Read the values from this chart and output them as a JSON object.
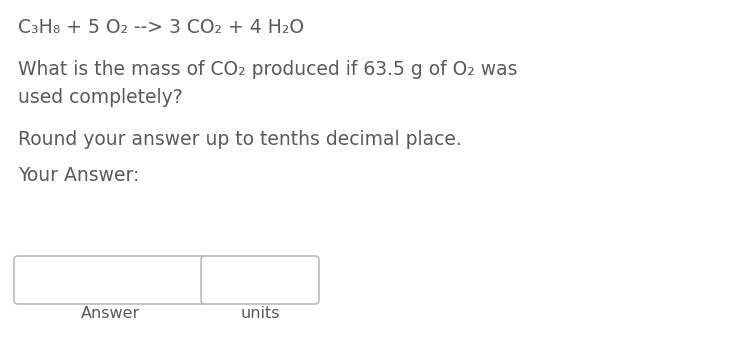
{
  "background_color": "#ffffff",
  "line1": "C₃H₈ + 5 O₂ --> 3 CO₂ + 4 H₂O",
  "line2": "What is the mass of CO₂ produced if 63.5 g of O₂ was",
  "line3": "used completely?",
  "line4": "Round your answer up to tenths decimal place.",
  "line5": "Your Answer:",
  "label1": "Answer",
  "label2": "units",
  "text_color": "#5a5a5a",
  "box_color": "#bbbbbb",
  "font_size_line1": 13.5,
  "font_size_body": 13.5,
  "font_size_label": 11.5,
  "fig_width": 7.5,
  "fig_height": 3.52,
  "dpi": 100
}
